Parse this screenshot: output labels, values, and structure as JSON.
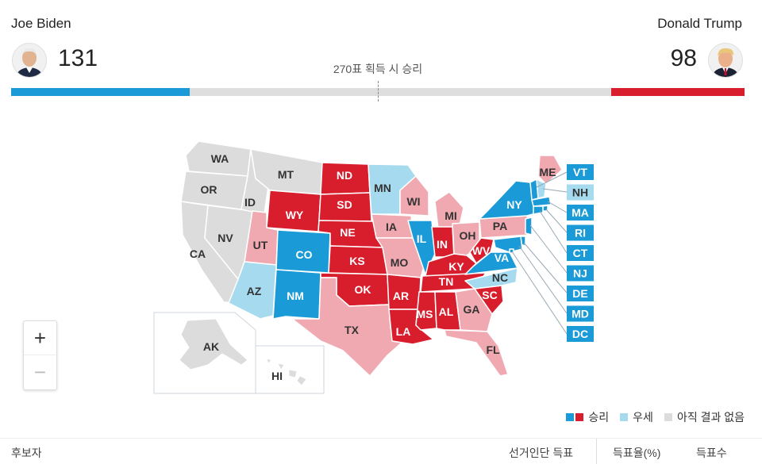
{
  "candidates": {
    "left": {
      "name": "Joe Biden",
      "votes": "131",
      "color": "#1a9bd7"
    },
    "right": {
      "name": "Donald Trump",
      "votes": "98",
      "color": "#d81e2d"
    }
  },
  "threshold_label": "270표 획득 시 승리",
  "progress": {
    "dem_electoral_votes": 131,
    "rep_electoral_votes": 98,
    "to_win": 270,
    "total": 538
  },
  "colors": {
    "dem_win": "#1a9bd7",
    "rep_win": "#d81e2d",
    "dem_lean": "#a5daef",
    "rep_lean": "#f0a9b1",
    "no_result": "#dcdcdc"
  },
  "states": [
    {
      "code": "WA",
      "status": "no_result"
    },
    {
      "code": "OR",
      "status": "no_result"
    },
    {
      "code": "CA",
      "status": "no_result"
    },
    {
      "code": "NV",
      "status": "no_result"
    },
    {
      "code": "ID",
      "status": "no_result"
    },
    {
      "code": "MT",
      "status": "no_result"
    },
    {
      "code": "WY",
      "status": "rep_win"
    },
    {
      "code": "UT",
      "status": "rep_lean"
    },
    {
      "code": "AZ",
      "status": "dem_lean"
    },
    {
      "code": "CO",
      "status": "dem_win"
    },
    {
      "code": "NM",
      "status": "dem_win"
    },
    {
      "code": "ND",
      "status": "rep_win"
    },
    {
      "code": "SD",
      "status": "rep_win"
    },
    {
      "code": "NE",
      "status": "rep_win"
    },
    {
      "code": "KS",
      "status": "rep_win"
    },
    {
      "code": "OK",
      "status": "rep_win"
    },
    {
      "code": "TX",
      "status": "rep_lean"
    },
    {
      "code": "MN",
      "status": "dem_lean"
    },
    {
      "code": "IA",
      "status": "rep_lean"
    },
    {
      "code": "MO",
      "status": "rep_lean"
    },
    {
      "code": "AR",
      "status": "rep_win"
    },
    {
      "code": "LA",
      "status": "rep_win"
    },
    {
      "code": "WI",
      "status": "rep_lean"
    },
    {
      "code": "IL",
      "status": "dem_win"
    },
    {
      "code": "MI",
      "status": "rep_lean"
    },
    {
      "code": "IN",
      "status": "rep_win"
    },
    {
      "code": "OH",
      "status": "rep_lean"
    },
    {
      "code": "KY",
      "status": "rep_win"
    },
    {
      "code": "TN",
      "status": "rep_win"
    },
    {
      "code": "MS",
      "status": "rep_win"
    },
    {
      "code": "AL",
      "status": "rep_win"
    },
    {
      "code": "GA",
      "status": "rep_lean"
    },
    {
      "code": "FL",
      "status": "rep_lean"
    },
    {
      "code": "SC",
      "status": "rep_win"
    },
    {
      "code": "NC",
      "status": "dem_lean"
    },
    {
      "code": "VA",
      "status": "dem_win"
    },
    {
      "code": "WV",
      "status": "rep_win"
    },
    {
      "code": "PA",
      "status": "rep_lean"
    },
    {
      "code": "NY",
      "status": "dem_win"
    },
    {
      "code": "ME",
      "status": "rep_lean"
    },
    {
      "code": "AK",
      "status": "no_result"
    },
    {
      "code": "HI",
      "status": "no_result"
    }
  ],
  "small_states": [
    {
      "code": "VT",
      "status": "dem_win"
    },
    {
      "code": "NH",
      "status": "dem_lean"
    },
    {
      "code": "MA",
      "status": "dem_win"
    },
    {
      "code": "RI",
      "status": "dem_win"
    },
    {
      "code": "CT",
      "status": "dem_win"
    },
    {
      "code": "NJ",
      "status": "dem_win"
    },
    {
      "code": "DE",
      "status": "dem_win"
    },
    {
      "code": "MD",
      "status": "dem_win"
    },
    {
      "code": "DC",
      "status": "dem_win"
    }
  ],
  "zoom": {
    "in": "+",
    "out": "−"
  },
  "legend": {
    "win": "승리",
    "lean": "우세",
    "none": "아직 결과 없음"
  },
  "footer": {
    "candidate": "후보자",
    "electoral": "선거인단 득표",
    "percent": "득표율(%)",
    "votes": "득표수"
  }
}
